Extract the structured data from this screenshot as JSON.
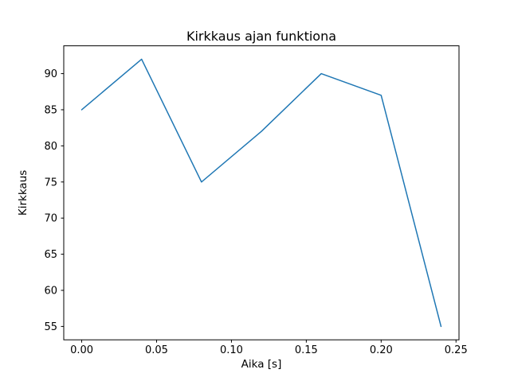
{
  "figure": {
    "background": "#ffffff",
    "spine_color": "#000000",
    "text_color": "#000000"
  },
  "chart_data": {
    "type": "line",
    "title": "Kirkkaus ajan funktiona",
    "xlabel": "Aika [s]",
    "ylabel": "Kirkkaus",
    "x": [
      0.0,
      0.04,
      0.08,
      0.12,
      0.16,
      0.2,
      0.24
    ],
    "y": [
      85,
      92,
      75,
      82,
      90,
      87,
      55
    ],
    "series": [
      {
        "name": "Kirkkaus",
        "x": [
          0.0,
          0.04,
          0.08,
          0.12,
          0.16,
          0.2,
          0.24
        ],
        "values": [
          85,
          92,
          75,
          82,
          90,
          87,
          55
        ]
      }
    ],
    "line_color": "#1f77b4",
    "line_width": 1.5,
    "markers": false,
    "grid": false,
    "xlim": [
      -0.012,
      0.252
    ],
    "ylim": [
      53.15,
      93.85
    ],
    "xticks": [
      0.0,
      0.05,
      0.1,
      0.15,
      0.2,
      0.25
    ],
    "xtick_labels": [
      "0.00",
      "0.05",
      "0.10",
      "0.15",
      "0.20",
      "0.25"
    ],
    "yticks": [
      55,
      60,
      65,
      70,
      75,
      80,
      85,
      90
    ],
    "ytick_labels": [
      "55",
      "60",
      "65",
      "70",
      "75",
      "80",
      "85",
      "90"
    ]
  }
}
